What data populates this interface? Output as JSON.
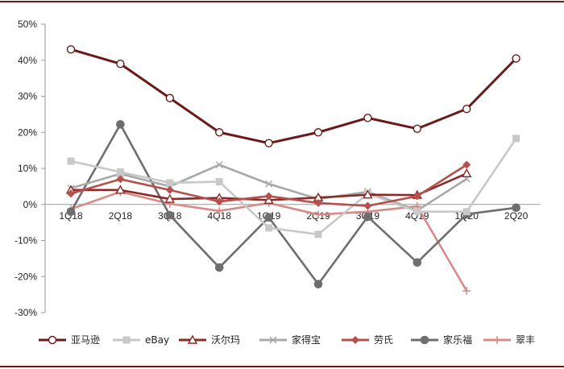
{
  "chart_data": {
    "type": "line",
    "categories": [
      "1Q18",
      "2Q18",
      "3Q18",
      "4Q18",
      "1Q19",
      "2Q19",
      "3Q19",
      "4Q19",
      "1Q20",
      "2Q20"
    ],
    "y_ticks": [
      "50%",
      "40%",
      "30%",
      "20%",
      "10%",
      "0%",
      "-10%",
      "-20%",
      "-30%"
    ],
    "ylim": [
      -30,
      50
    ],
    "grid": false,
    "legend_position": "bottom",
    "series": [
      {
        "name": "亚马逊",
        "color": "#6b1a17",
        "marker": "circle-open",
        "values": [
          43,
          39,
          29.5,
          20,
          17,
          20,
          24,
          21,
          26.5,
          40.5
        ]
      },
      {
        "name": "eBay",
        "color": "#c8c8c8",
        "marker": "square",
        "values": [
          12,
          9,
          6,
          6.3,
          -6.5,
          -8.3,
          3,
          -2,
          -2,
          18.3
        ]
      },
      {
        "name": "沃尔玛",
        "color": "#8b2a26",
        "marker": "triangle-open",
        "values": [
          4,
          4,
          1.5,
          1.8,
          1.2,
          1.9,
          2.7,
          2.6,
          8.6,
          null
        ]
      },
      {
        "name": "家得宝",
        "color": "#a8a8a8",
        "marker": "x",
        "values": [
          4.5,
          8.5,
          5,
          11,
          5.7,
          1.5,
          3.5,
          -1.7,
          7.1,
          null
        ]
      },
      {
        "name": "劳氏",
        "color": "#b5504c",
        "marker": "diamond",
        "values": [
          3,
          7,
          4,
          0.8,
          2.3,
          0.4,
          -0.4,
          2.3,
          11,
          null
        ]
      },
      {
        "name": "家乐福",
        "color": "#6e6e6e",
        "marker": "circle",
        "values": [
          -2,
          22.2,
          -3,
          -17.5,
          -3.6,
          -22.1,
          -3.4,
          -16.1,
          -2.7,
          -0.9
        ]
      },
      {
        "name": "翠丰",
        "color": "#d98a86",
        "marker": "plus",
        "values": [
          -1.3,
          3.5,
          0.2,
          -1.8,
          0.4,
          -2.8,
          -2,
          -0.5,
          -24,
          null
        ]
      }
    ]
  }
}
